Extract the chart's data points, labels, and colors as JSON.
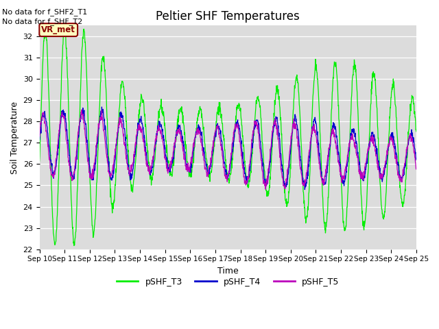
{
  "title": "Peltier SHF Temperatures",
  "xlabel": "Time",
  "ylabel": "Soil Temperature",
  "annotations": [
    "No data for f_SHF2_T1",
    "No data for f_SHF_T2"
  ],
  "vr_met_label": "VR_met",
  "ylim": [
    22.0,
    32.5
  ],
  "yticks": [
    22.0,
    23.0,
    24.0,
    25.0,
    26.0,
    27.0,
    28.0,
    29.0,
    30.0,
    31.0,
    32.0
  ],
  "xticklabels": [
    "Sep 10",
    "Sep 11",
    "Sep 12",
    "Sep 13",
    "Sep 14",
    "Sep 15",
    "Sep 16",
    "Sep 17",
    "Sep 18",
    "Sep 19",
    "Sep 20",
    "Sep 21",
    "Sep 22",
    "Sep 23",
    "Sep 24",
    "Sep 25"
  ],
  "colors": {
    "pSHF_T3": "#00ee00",
    "pSHF_T4": "#0000cc",
    "pSHF_T5": "#bb00bb"
  },
  "bg_color": "#dcdcdc",
  "legend_entries": [
    "pSHF_T3",
    "pSHF_T4",
    "pSHF_T5"
  ],
  "num_days": 15,
  "points_per_day": 96
}
